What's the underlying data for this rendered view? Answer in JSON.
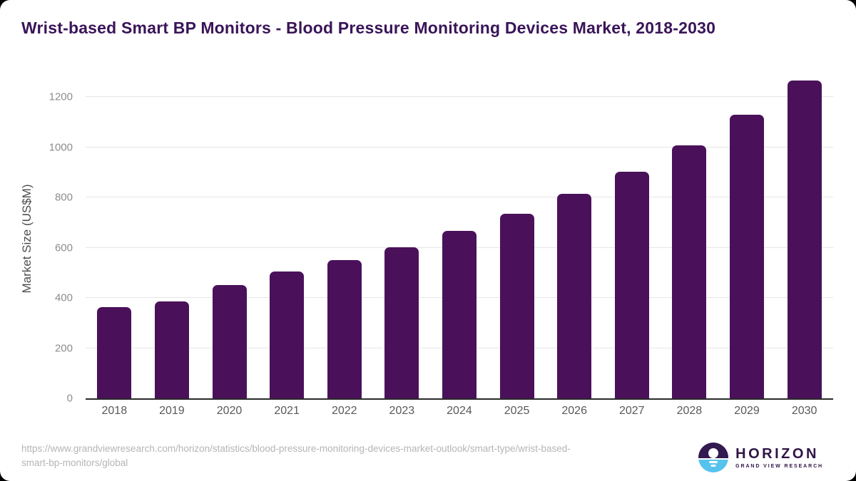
{
  "frame": {
    "outside_color": "#000000",
    "card_background": "#ffffff"
  },
  "header": {
    "title": "Wrist-based Smart BP Monitors - Blood Pressure Monitoring Devices Market, 2018-2030",
    "title_color": "#3A1458"
  },
  "chart_data": {
    "type": "bar",
    "title": "Wrist-based Smart BP Monitors - Blood Pressure Monitoring Devices Market, 2018-2030",
    "categories": [
      "2018",
      "2019",
      "2020",
      "2021",
      "2022",
      "2023",
      "2024",
      "2025",
      "2026",
      "2027",
      "2028",
      "2029",
      "2030"
    ],
    "values": [
      362,
      385,
      450,
      505,
      550,
      602,
      666,
      736,
      814,
      903,
      1007,
      1129,
      1266
    ],
    "xlabel": "",
    "ylabel": "Market Size (US$M)",
    "ylim": [
      0,
      1200
    ],
    "yticks": [
      0,
      200,
      400,
      600,
      800,
      1000,
      1200
    ],
    "grid": true,
    "legend": "none",
    "bar_color": "#4A115A",
    "gridline_color": "#e6e6e6",
    "axis_line_color": "#2b2b2b",
    "tick_label_color": "#8c8c8c",
    "x_label_color": "#595959"
  },
  "footer": {
    "source_url_line1": "https://www.grandviewresearch.com/horizon/statistics/blood-pressure-monitoring-devices-market-outlook/smart-type/wrist-based-",
    "source_url_line2": "smart-bp-monitors/global",
    "logo": {
      "icon": "horizon-sun-over-water-icon",
      "name": "HORIZON",
      "subtitle": "GRAND VIEW RESEARCH",
      "dark_color": "#331A50",
      "water_color": "#56C3EE",
      "text_color": "#2F1446"
    }
  }
}
